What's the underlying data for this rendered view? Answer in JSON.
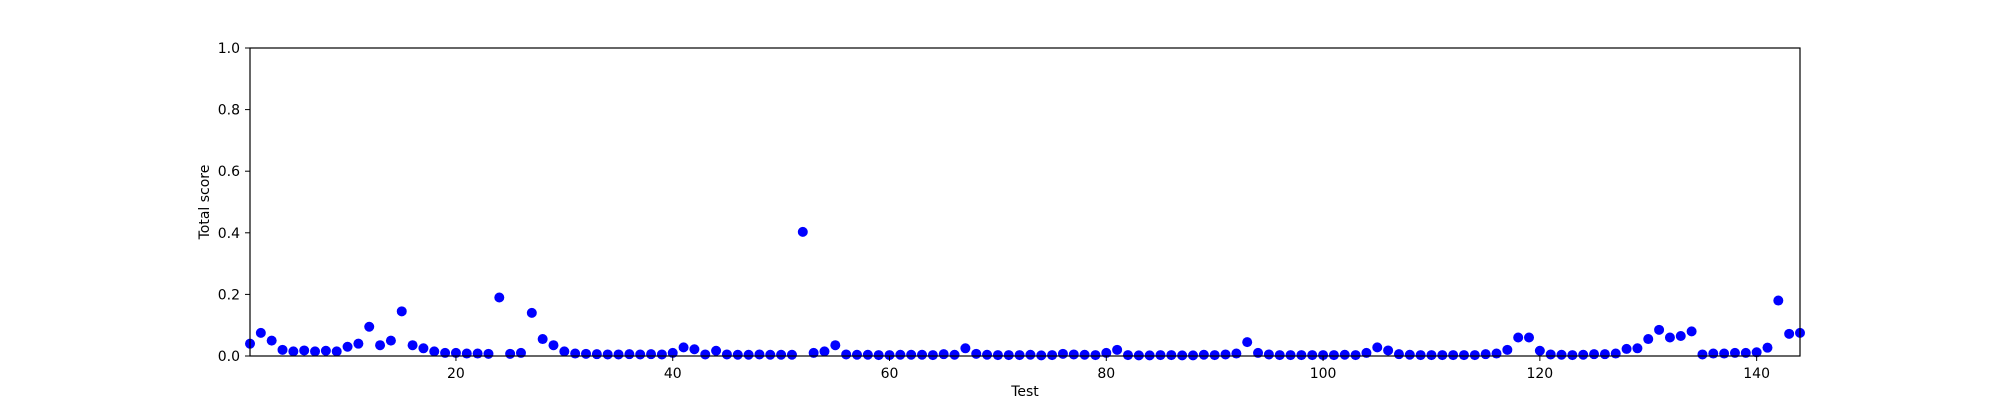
{
  "chart_data": {
    "type": "scatter",
    "xlabel": "Test",
    "ylabel": "Total score",
    "xlim": [
      1,
      144
    ],
    "ylim": [
      0,
      1.0
    ],
    "xticks": [
      20,
      40,
      60,
      80,
      100,
      120,
      140
    ],
    "yticks": [
      0.0,
      0.2,
      0.4,
      0.6,
      0.8,
      1.0
    ],
    "xtick_labels": [
      "20",
      "40",
      "60",
      "80",
      "100",
      "120",
      "140"
    ],
    "ytick_labels": [
      "0.0",
      "0.2",
      "0.4",
      "0.6",
      "0.8",
      "1.0"
    ],
    "grid": false,
    "marker_color": "#0000ff",
    "x": [
      1,
      2,
      3,
      4,
      5,
      6,
      7,
      8,
      9,
      10,
      11,
      12,
      13,
      14,
      15,
      16,
      17,
      18,
      19,
      20,
      21,
      22,
      23,
      24,
      25,
      26,
      27,
      28,
      29,
      30,
      31,
      32,
      33,
      34,
      35,
      36,
      37,
      38,
      39,
      40,
      41,
      42,
      43,
      44,
      45,
      46,
      47,
      48,
      49,
      50,
      51,
      52,
      53,
      54,
      55,
      56,
      57,
      58,
      59,
      60,
      61,
      62,
      63,
      64,
      65,
      66,
      67,
      68,
      69,
      70,
      71,
      72,
      73,
      74,
      75,
      76,
      77,
      78,
      79,
      80,
      81,
      82,
      83,
      84,
      85,
      86,
      87,
      88,
      89,
      90,
      91,
      92,
      93,
      94,
      95,
      96,
      97,
      98,
      99,
      100,
      101,
      102,
      103,
      104,
      105,
      106,
      107,
      108,
      109,
      110,
      111,
      112,
      113,
      114,
      115,
      116,
      117,
      118,
      119,
      120,
      121,
      122,
      123,
      124,
      125,
      126,
      127,
      128,
      129,
      130,
      131,
      132,
      133,
      134,
      135,
      136,
      137,
      138,
      139,
      140,
      141,
      142,
      143,
      144
    ],
    "y": [
      0.04,
      0.075,
      0.05,
      0.02,
      0.015,
      0.018,
      0.015,
      0.017,
      0.015,
      0.03,
      0.04,
      0.095,
      0.035,
      0.05,
      0.145,
      0.035,
      0.025,
      0.015,
      0.01,
      0.01,
      0.008,
      0.008,
      0.007,
      0.19,
      0.007,
      0.01,
      0.14,
      0.055,
      0.035,
      0.015,
      0.008,
      0.007,
      0.006,
      0.005,
      0.005,
      0.006,
      0.005,
      0.006,
      0.005,
      0.01,
      0.028,
      0.022,
      0.005,
      0.017,
      0.005,
      0.004,
      0.004,
      0.005,
      0.004,
      0.004,
      0.004,
      0.403,
      0.01,
      0.015,
      0.035,
      0.005,
      0.004,
      0.004,
      0.003,
      0.003,
      0.004,
      0.004,
      0.004,
      0.003,
      0.006,
      0.004,
      0.025,
      0.007,
      0.004,
      0.003,
      0.003,
      0.003,
      0.004,
      0.002,
      0.003,
      0.007,
      0.005,
      0.004,
      0.003,
      0.01,
      0.02,
      0.003,
      0.002,
      0.002,
      0.003,
      0.003,
      0.002,
      0.002,
      0.004,
      0.003,
      0.005,
      0.008,
      0.045,
      0.01,
      0.005,
      0.003,
      0.003,
      0.003,
      0.003,
      0.003,
      0.003,
      0.004,
      0.003,
      0.01,
      0.028,
      0.018,
      0.006,
      0.004,
      0.003,
      0.003,
      0.003,
      0.003,
      0.003,
      0.003,
      0.006,
      0.008,
      0.02,
      0.06,
      0.06,
      0.017,
      0.005,
      0.004,
      0.003,
      0.004,
      0.006,
      0.006,
      0.008,
      0.023,
      0.025,
      0.055,
      0.085,
      0.06,
      0.065,
      0.08,
      0.005,
      0.008,
      0.008,
      0.01,
      0.01,
      0.012,
      0.027,
      0.18,
      0.072,
      0.075
    ]
  }
}
